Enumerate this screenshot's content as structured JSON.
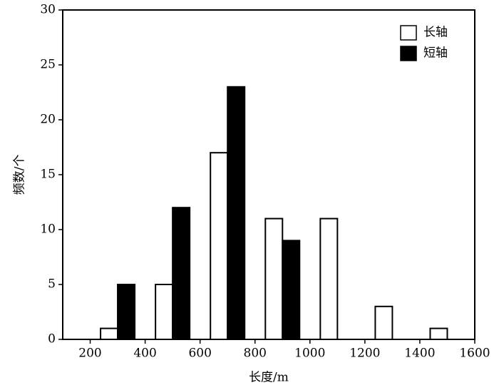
{
  "chart_data": {
    "type": "bar",
    "x": [
      300,
      500,
      700,
      900,
      1100,
      1300,
      1500
    ],
    "series": [
      {
        "name": "长轴",
        "color": "#ffffff",
        "values": [
          1,
          5,
          17,
          11,
          11,
          3,
          1
        ]
      },
      {
        "name": "短轴",
        "color": "#000000",
        "values": [
          5,
          12,
          23,
          9,
          0,
          0,
          0
        ]
      }
    ],
    "xlabel": "长度/m",
    "ylabel": "频数/个",
    "xlim": [
      100,
      1600
    ],
    "xticks": [
      200,
      400,
      600,
      800,
      1000,
      1200,
      1400,
      1600
    ],
    "ylim": [
      0,
      30
    ],
    "yticks": [
      0,
      5,
      10,
      15,
      20,
      25,
      30
    ],
    "legend": "upper right"
  }
}
